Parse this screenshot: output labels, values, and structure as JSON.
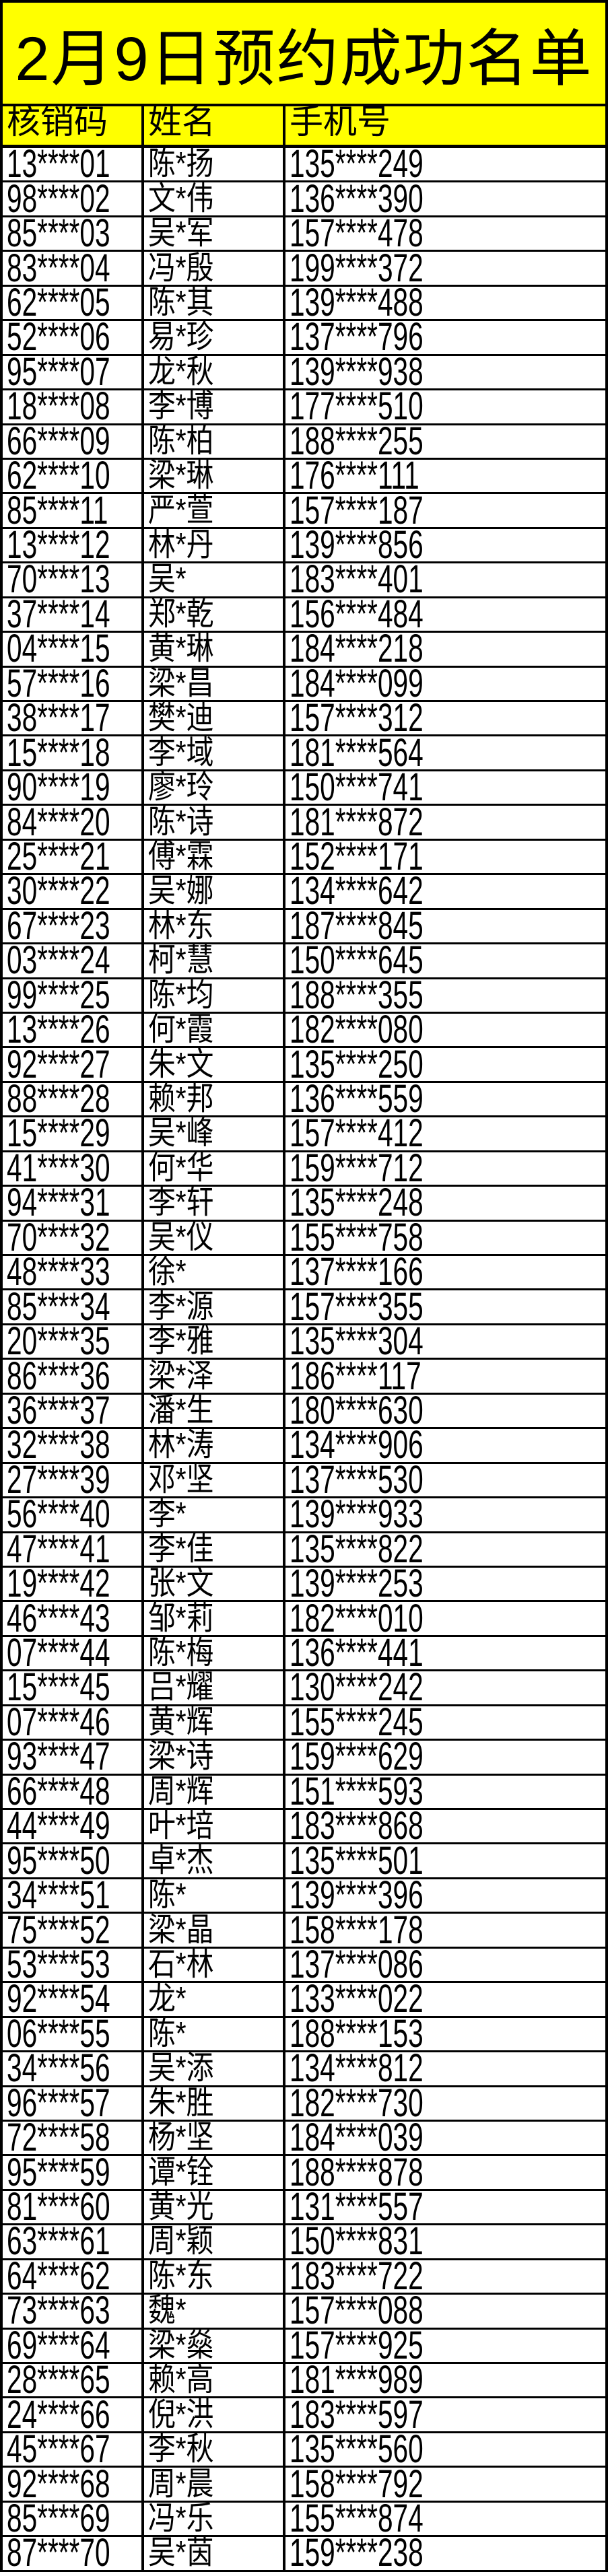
{
  "title": "2月9日预约成功名单",
  "columns": [
    "核销码",
    "姓名",
    "手机号"
  ],
  "colors": {
    "header_bg": "#ffff00",
    "border": "#000000"
  },
  "rows": [
    [
      "13****01",
      "陈*扬",
      "135****249"
    ],
    [
      "98****02",
      "文*伟",
      "136****390"
    ],
    [
      "85****03",
      "吴*军",
      "157****478"
    ],
    [
      "83****04",
      "冯*殷",
      "199****372"
    ],
    [
      "62****05",
      "陈*其",
      "139****488"
    ],
    [
      "52****06",
      "易*珍",
      "137****796"
    ],
    [
      "95****07",
      "龙*秋",
      "139****938"
    ],
    [
      "18****08",
      "李*博",
      "177****510"
    ],
    [
      "66****09",
      "陈*柏",
      "188****255"
    ],
    [
      "62****10",
      "梁*琳",
      "176****111"
    ],
    [
      "85****11",
      "严*萱",
      "157****187"
    ],
    [
      "13****12",
      "林*丹",
      "139****856"
    ],
    [
      "70****13",
      "吴*",
      "183****401"
    ],
    [
      "37****14",
      "郑*乾",
      "156****484"
    ],
    [
      "04****15",
      "黄*琳",
      "184****218"
    ],
    [
      "57****16",
      "梁*昌",
      "184****099"
    ],
    [
      "38****17",
      "樊*迪",
      "157****312"
    ],
    [
      "15****18",
      "李*域",
      "181****564"
    ],
    [
      "90****19",
      "廖*玲",
      "150****741"
    ],
    [
      "84****20",
      "陈*诗",
      "181****872"
    ],
    [
      "25****21",
      "傅*霖",
      "152****171"
    ],
    [
      "30****22",
      "吴*娜",
      "134****642"
    ],
    [
      "67****23",
      "林*东",
      "187****845"
    ],
    [
      "03****24",
      "柯*慧",
      "150****645"
    ],
    [
      "99****25",
      "陈*均",
      "188****355"
    ],
    [
      "13****26",
      "何*霞",
      "182****080"
    ],
    [
      "92****27",
      "朱*文",
      "135****250"
    ],
    [
      "88****28",
      "赖*邦",
      "136****559"
    ],
    [
      "15****29",
      "吴*峰",
      "157****412"
    ],
    [
      "41****30",
      "何*华",
      "159****712"
    ],
    [
      "94****31",
      "李*轩",
      "135****248"
    ],
    [
      "70****32",
      "吴*仪",
      "155****758"
    ],
    [
      "48****33",
      "徐*",
      "137****166"
    ],
    [
      "85****34",
      "李*源",
      "157****355"
    ],
    [
      "20****35",
      "李*雅",
      "135****304"
    ],
    [
      "86****36",
      "梁*泽",
      "186****117"
    ],
    [
      "36****37",
      "潘*生",
      "180****630"
    ],
    [
      "32****38",
      "林*涛",
      "134****906"
    ],
    [
      "27****39",
      "邓*坚",
      "137****530"
    ],
    [
      "56****40",
      "李*",
      "139****933"
    ],
    [
      "47****41",
      "李*佳",
      "135****822"
    ],
    [
      "19****42",
      "张*文",
      "139****253"
    ],
    [
      "46****43",
      "邹*莉",
      "182****010"
    ],
    [
      "07****44",
      "陈*梅",
      "136****441"
    ],
    [
      "15****45",
      "吕*耀",
      "130****242"
    ],
    [
      "07****46",
      "黄*辉",
      "155****245"
    ],
    [
      "93****47",
      "梁*诗",
      "159****629"
    ],
    [
      "66****48",
      "周*辉",
      "151****593"
    ],
    [
      "44****49",
      "叶*培",
      "183****868"
    ],
    [
      "95****50",
      "卓*杰",
      "135****501"
    ],
    [
      "34****51",
      "陈*",
      "139****396"
    ],
    [
      "75****52",
      "梁*晶",
      "158****178"
    ],
    [
      "53****53",
      "石*林",
      "137****086"
    ],
    [
      "92****54",
      "龙*",
      "133****022"
    ],
    [
      "06****55",
      "陈*",
      "188****153"
    ],
    [
      "34****56",
      "吴*添",
      "134****812"
    ],
    [
      "96****57",
      "朱*胜",
      "182****730"
    ],
    [
      "72****58",
      "杨*坚",
      "184****039"
    ],
    [
      "95****59",
      "谭*铨",
      "188****878"
    ],
    [
      "81****60",
      "黄*光",
      "131****557"
    ],
    [
      "63****61",
      "周*颖",
      "150****831"
    ],
    [
      "64****62",
      "陈*东",
      "183****722"
    ],
    [
      "73****63",
      "魏*",
      "157****088"
    ],
    [
      "69****64",
      "梁*燊",
      "157****925"
    ],
    [
      "28****65",
      "赖*高",
      "181****989"
    ],
    [
      "24****66",
      "倪*洪",
      "183****597"
    ],
    [
      "45****67",
      "李*秋",
      "135****560"
    ],
    [
      "92****68",
      "周*晨",
      "158****792"
    ],
    [
      "85****69",
      "冯*乐",
      "155****874"
    ],
    [
      "87****70",
      "吴*茵",
      "159****238"
    ]
  ]
}
